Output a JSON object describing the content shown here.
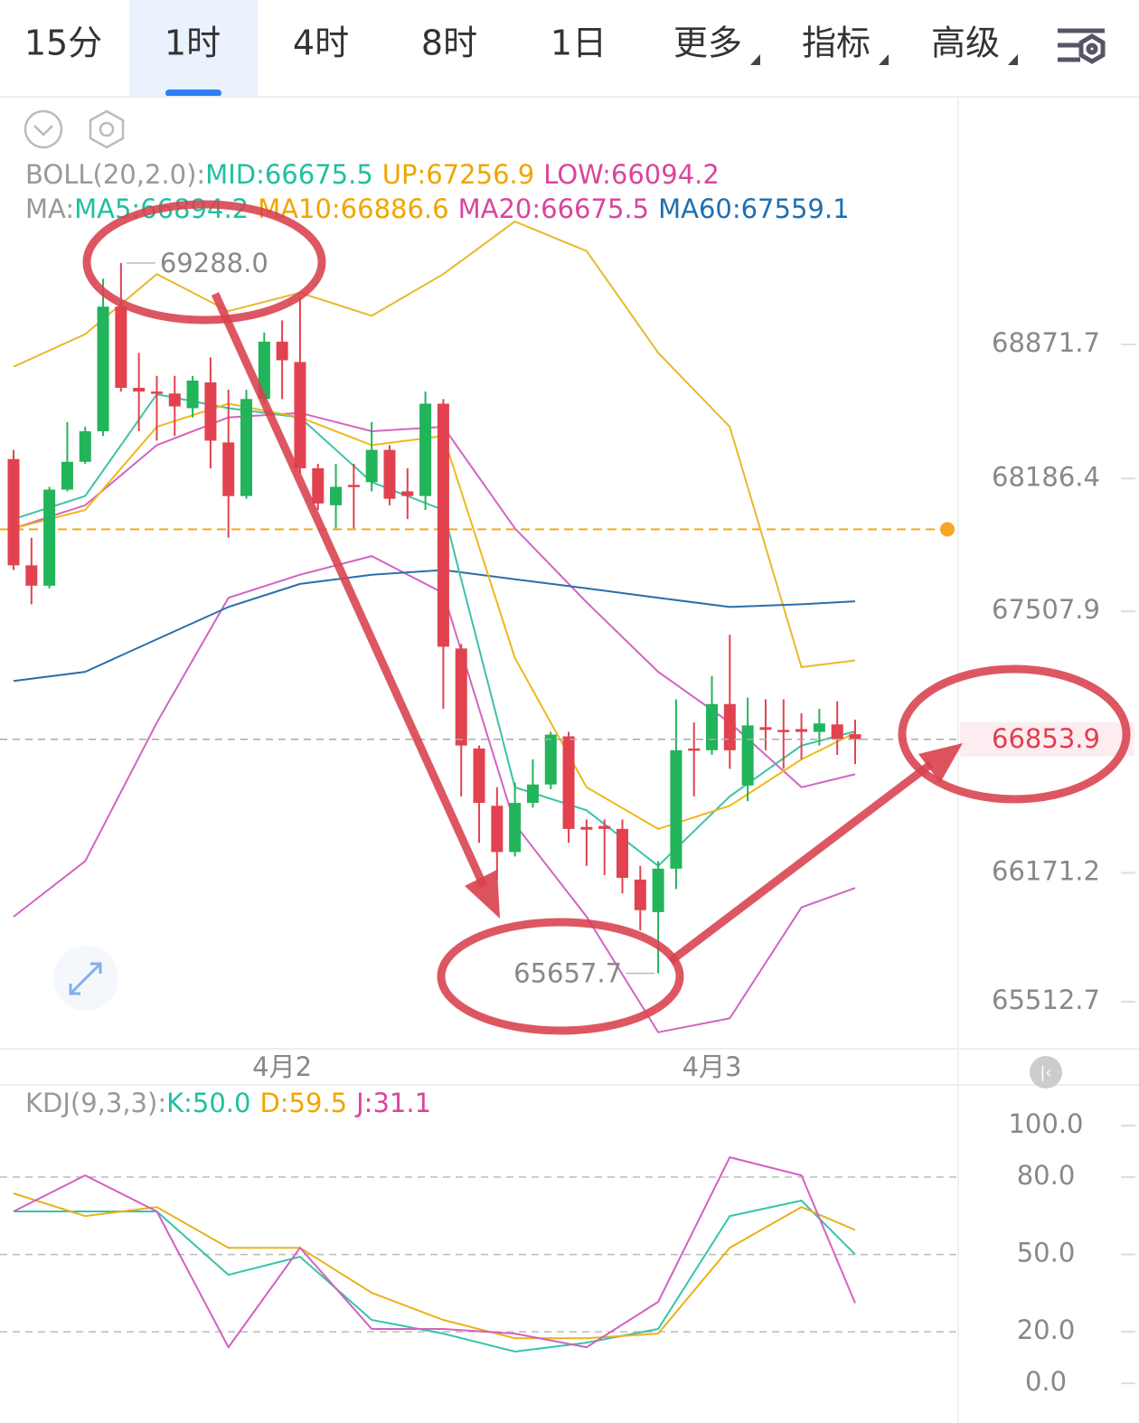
{
  "tabs": {
    "items": [
      "15分",
      "1时",
      "4时",
      "8时",
      "1日",
      "更多",
      "指标",
      "高级"
    ],
    "active": 1
  },
  "chart_data": [
    {
      "type": "candlestick",
      "boll_legend": {
        "label": "BOLL(20,2.0):",
        "items": [
          {
            "text": "MID:66675.5",
            "color": "#1fc0a0"
          },
          {
            "text": "UP:67256.9",
            "color": "#f0a500"
          },
          {
            "text": "LOW:66094.2",
            "color": "#d9459c"
          }
        ]
      },
      "ma_legend": {
        "label": "MA:",
        "items": [
          {
            "text": "MA5:66894.2",
            "color": "#1fc0a0"
          },
          {
            "text": "MA10:66886.6",
            "color": "#f0a500"
          },
          {
            "text": "MA20:66675.5",
            "color": "#d9459c"
          },
          {
            "text": "MA60:67559.1",
            "color": "#1f6fb0"
          }
        ]
      },
      "categories": [
        null,
        null,
        null,
        null,
        null,
        null,
        null,
        null,
        null,
        null,
        null,
        null,
        null,
        null,
        null,
        "4月2",
        null,
        null,
        null,
        null,
        null,
        null,
        null,
        null,
        null,
        null,
        null,
        null,
        null,
        null,
        null,
        null,
        null,
        null,
        null,
        null,
        null,
        null,
        null,
        "4月3",
        null,
        null,
        null,
        null,
        null,
        null,
        null,
        null
      ],
      "candles": {
        "open": [
          68286,
          67743,
          67639,
          68130,
          68272,
          68428,
          69065,
          68650,
          68631,
          68621,
          68546,
          68678,
          68371,
          68097,
          68593,
          68886,
          68782,
          68239,
          68050,
          68154,
          68168,
          68333,
          68121,
          68097,
          68569,
          67318,
          66807,
          66514,
          66278,
          66529,
          66623,
          66869,
          66406,
          66411,
          66396,
          66137,
          65971,
          66193,
          66807,
          66798,
          67034,
          66618,
          66916,
          66902,
          66906,
          66892,
          66930,
          66880
        ],
        "close": [
          67743,
          67639,
          68130,
          68272,
          68428,
          69065,
          68650,
          68631,
          68621,
          68555,
          68687,
          68380,
          68097,
          68593,
          68886,
          68791,
          68239,
          68059,
          68144,
          68144,
          68333,
          68083,
          68097,
          68569,
          67327,
          66822,
          66529,
          66278,
          66529,
          66623,
          66878,
          66396,
          66392,
          66396,
          66146,
          65981,
          66193,
          66798,
          66798,
          67034,
          66798,
          66925,
          66902,
          66892,
          66892,
          66935,
          66854,
          66853.9
        ],
        "high": [
          68333,
          67884,
          68144,
          68475,
          68451,
          69207,
          69288,
          68829,
          68711,
          68711,
          68711,
          68806,
          68640,
          68640,
          68933,
          68995,
          69113,
          68262,
          68262,
          68262,
          68475,
          68357,
          68239,
          68631,
          68593,
          67341,
          66822,
          66609,
          66633,
          66751,
          66892,
          66892,
          66444,
          66444,
          66444,
          66207,
          66231,
          67058,
          66940,
          67176,
          67388,
          67067,
          67058,
          67058,
          66987,
          67010,
          67048,
          66954
        ],
        "low": [
          67719,
          67544,
          67625,
          68121,
          68262,
          68404,
          68631,
          68428,
          68380,
          68404,
          68499,
          68239,
          67884,
          68083,
          68569,
          68593,
          68215,
          68026,
          67932,
          67932,
          68121,
          68050,
          67979,
          68026,
          67010,
          66562,
          66325,
          66137,
          66255,
          66505,
          66599,
          66325,
          66207,
          66160,
          66066,
          65877,
          65657.7,
          66089,
          66562,
          66774,
          66703,
          66538,
          66798,
          66703,
          66751,
          66822,
          66774,
          66727
        ]
      },
      "up_color": "#22b45a",
      "down_color": "#e2424f",
      "line_x": [
        0,
        4,
        8,
        12,
        16,
        20,
        24,
        28,
        32,
        36,
        40,
        44,
        47
      ],
      "lines": [
        {
          "color": "#e9b82b",
          "values": [
            68758,
            68924,
            69231,
            69042,
            69136,
            69018,
            69231,
            69500,
            69349,
            68829,
            68451,
            67223,
            67256.9
          ]
        },
        {
          "color": "#d264c0",
          "values": [
            67932,
            68050,
            68357,
            68499,
            68522,
            68428,
            68451,
            67932,
            67554,
            67199,
            66939,
            66609,
            66675.5
          ]
        },
        {
          "color": "#d264c0",
          "values": [
            65947,
            66231,
            66939,
            67577,
            67695,
            67790,
            67601,
            66420,
            65947,
            65357,
            65428,
            65995,
            66094.2
          ]
        },
        {
          "color": "#2b6ea8",
          "values": [
            67152,
            67199,
            67365,
            67530,
            67648,
            67695,
            67719,
            67672,
            67625,
            67577,
            67530,
            67544,
            67559.1
          ]
        },
        {
          "color": "#3cc2a8",
          "values": [
            67979,
            68097,
            68617,
            68546,
            68499,
            68168,
            68026,
            66609,
            66491,
            66207,
            66562,
            66822,
            66894.2
          ]
        },
        {
          "color": "#efb81a",
          "values": [
            67932,
            68026,
            68451,
            68569,
            68499,
            68357,
            68404,
            67270,
            66609,
            66396,
            66514,
            66751,
            66886.6
          ]
        }
      ],
      "ylim": [
        65272.7,
        70137.6
      ],
      "yticks": [
        68871.7,
        68186.4,
        67507.9,
        66171.2,
        65512.7
      ],
      "last_price": 66853.9,
      "alert_level": 67927,
      "max_label": "69288.0",
      "min_label": "65657.7"
    },
    {
      "type": "line",
      "legend": {
        "label": "KDJ(9,3,3):",
        "items": [
          {
            "text": "K:50.0",
            "color": "#1fc0a0"
          },
          {
            "text": "D:59.5",
            "color": "#f0a500"
          },
          {
            "text": "J:31.1",
            "color": "#d9459c"
          }
        ]
      },
      "x": [
        0,
        4,
        8,
        12,
        16,
        20,
        24,
        28,
        32,
        36,
        40,
        44,
        47
      ],
      "series": [
        {
          "color": "#35c4ac",
          "values": [
            66.7,
            66.7,
            66.7,
            42.1,
            49.1,
            24.6,
            19.3,
            12.3,
            15.8,
            21.1,
            64.9,
            70.9,
            50.0
          ]
        },
        {
          "color": "#e9b11b",
          "values": [
            73.7,
            64.9,
            68.4,
            52.6,
            52.6,
            35.1,
            24.6,
            17.5,
            17.5,
            19.3,
            52.6,
            68.4,
            59.5
          ]
        },
        {
          "color": "#d461c0",
          "values": [
            66.7,
            80.7,
            66.7,
            14.0,
            52.6,
            21.1,
            21.1,
            19.3,
            14.0,
            31.6,
            87.7,
            80.7,
            31.1
          ]
        }
      ],
      "ylim": [
        -15.4,
        115.8
      ],
      "yticks": [
        {
          "value": 100,
          "label": "100.0"
        },
        {
          "value": 80,
          "label": "80.0"
        },
        {
          "value": 50,
          "label": "50.0"
        },
        {
          "value": 20,
          "label": "20.0"
        },
        {
          "value": 0,
          "label": "0.0"
        }
      ]
    }
  ]
}
